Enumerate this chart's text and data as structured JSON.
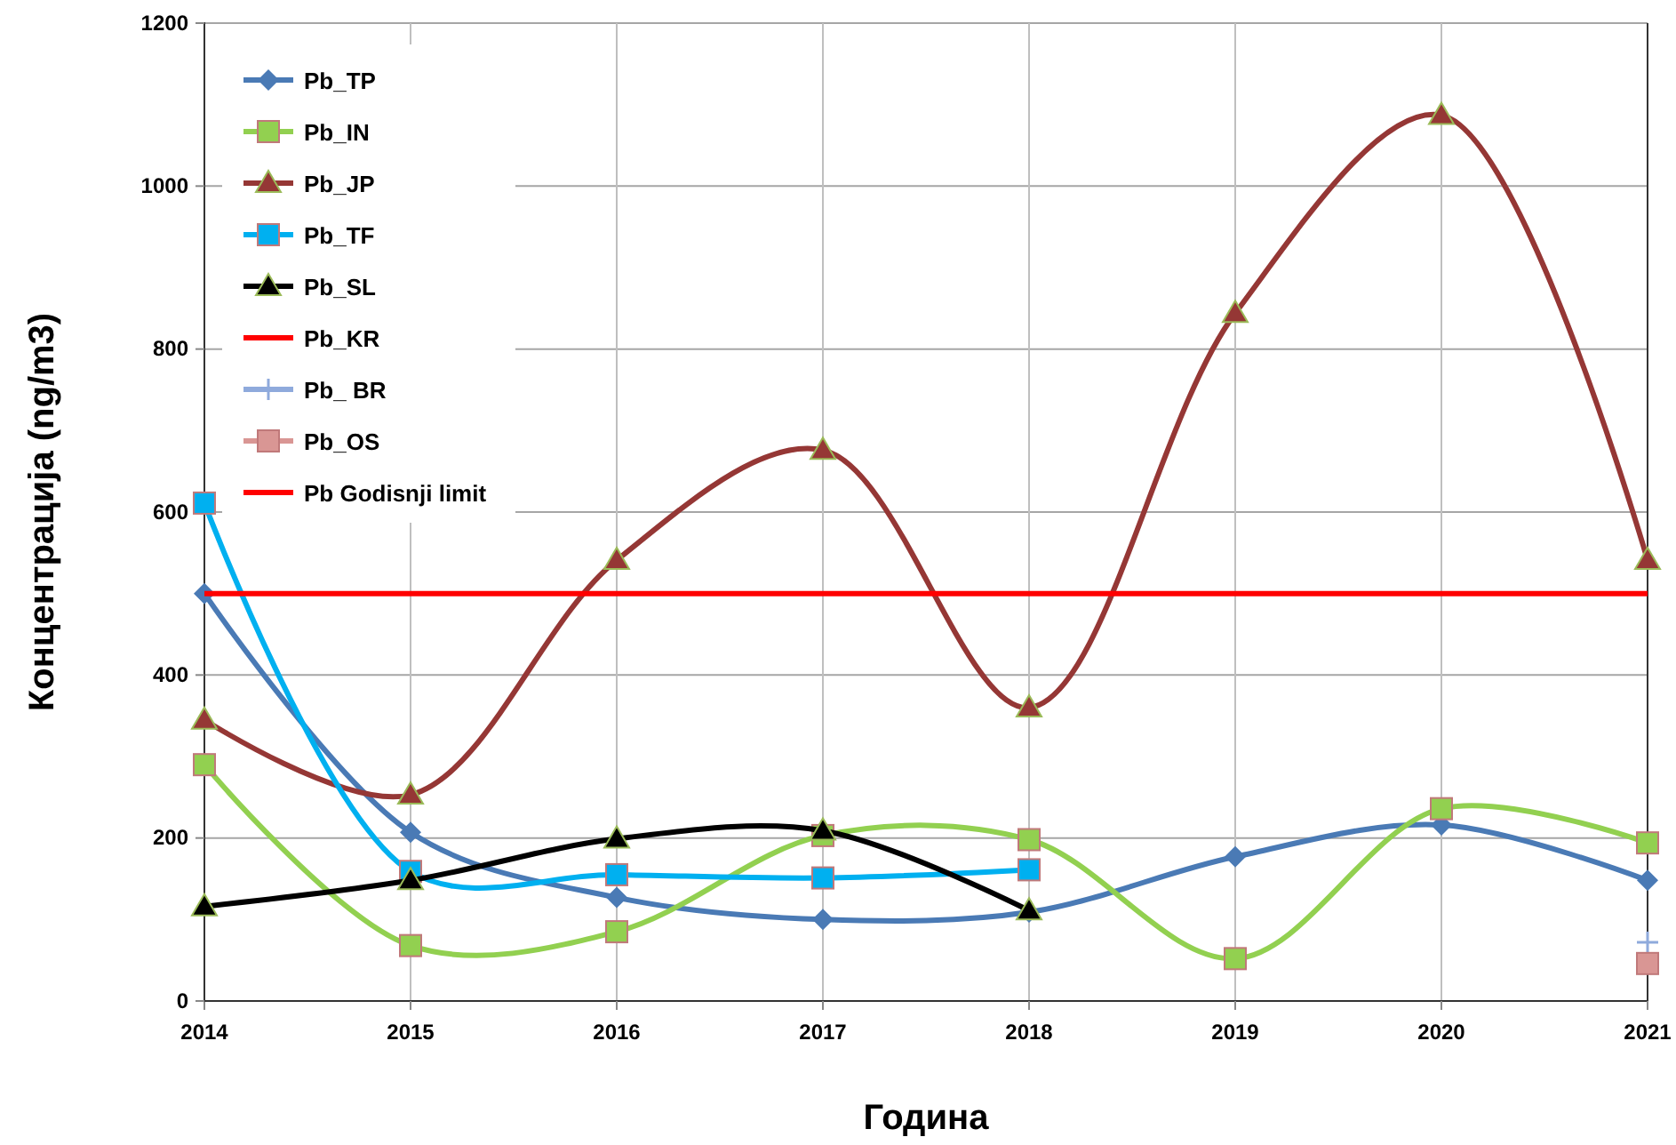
{
  "chart_data": {
    "type": "line",
    "xlabel": "Година",
    "ylabel": "Концентрација  (ng/m3)",
    "x": [
      2014,
      2015,
      2016,
      2017,
      2018,
      2019,
      2020,
      2021
    ],
    "xlim": [
      2014,
      2021
    ],
    "xticks": [
      2014,
      2015,
      2016,
      2017,
      2018,
      2019,
      2020,
      2021
    ],
    "ylim": [
      0,
      1200
    ],
    "yticks": [
      0,
      200,
      400,
      600,
      800,
      1000,
      1200
    ],
    "grid": true,
    "legend": "top left",
    "series": [
      {
        "name": "Pb_TP",
        "color": "#4a7ab5",
        "marker": "diamond",
        "values": [
          500,
          207,
          127,
          100,
          109,
          177,
          216,
          148
        ]
      },
      {
        "name": "Pb_IN",
        "color": "#92d050",
        "marker": "square",
        "values": [
          290,
          68,
          85,
          203,
          198,
          52,
          236,
          194
        ]
      },
      {
        "name": "Pb_JP",
        "color": "#953735",
        "marker": "triangle",
        "values": [
          345,
          253,
          541,
          676,
          360,
          844,
          1087,
          541
        ]
      },
      {
        "name": "Pb_TF",
        "color": "#00b0f0",
        "marker": "square",
        "values": [
          611,
          159,
          155,
          151,
          161,
          null,
          null,
          null
        ]
      },
      {
        "name": "Pb_SL",
        "color": "#000000",
        "marker": "triangle",
        "values": [
          116,
          148,
          199,
          209,
          111,
          null,
          null,
          null
        ]
      },
      {
        "name": "Pb_KR",
        "color": "#ff0000",
        "marker": "none",
        "values": [
          null,
          null,
          null,
          null,
          null,
          null,
          null,
          null
        ]
      },
      {
        "name": "Pb_ BR",
        "color": "#8faadc",
        "marker": "cross",
        "values": [
          null,
          null,
          null,
          null,
          null,
          null,
          null,
          72
        ]
      },
      {
        "name": "Pb_OS",
        "color": "#d99694",
        "marker": "square",
        "values": [
          null,
          null,
          null,
          null,
          null,
          null,
          null,
          46
        ]
      },
      {
        "name": "Pb Godisnji limit",
        "color": "#ff0000",
        "marker": "none",
        "values": [
          500,
          500,
          500,
          500,
          500,
          500,
          500,
          500
        ]
      }
    ]
  }
}
